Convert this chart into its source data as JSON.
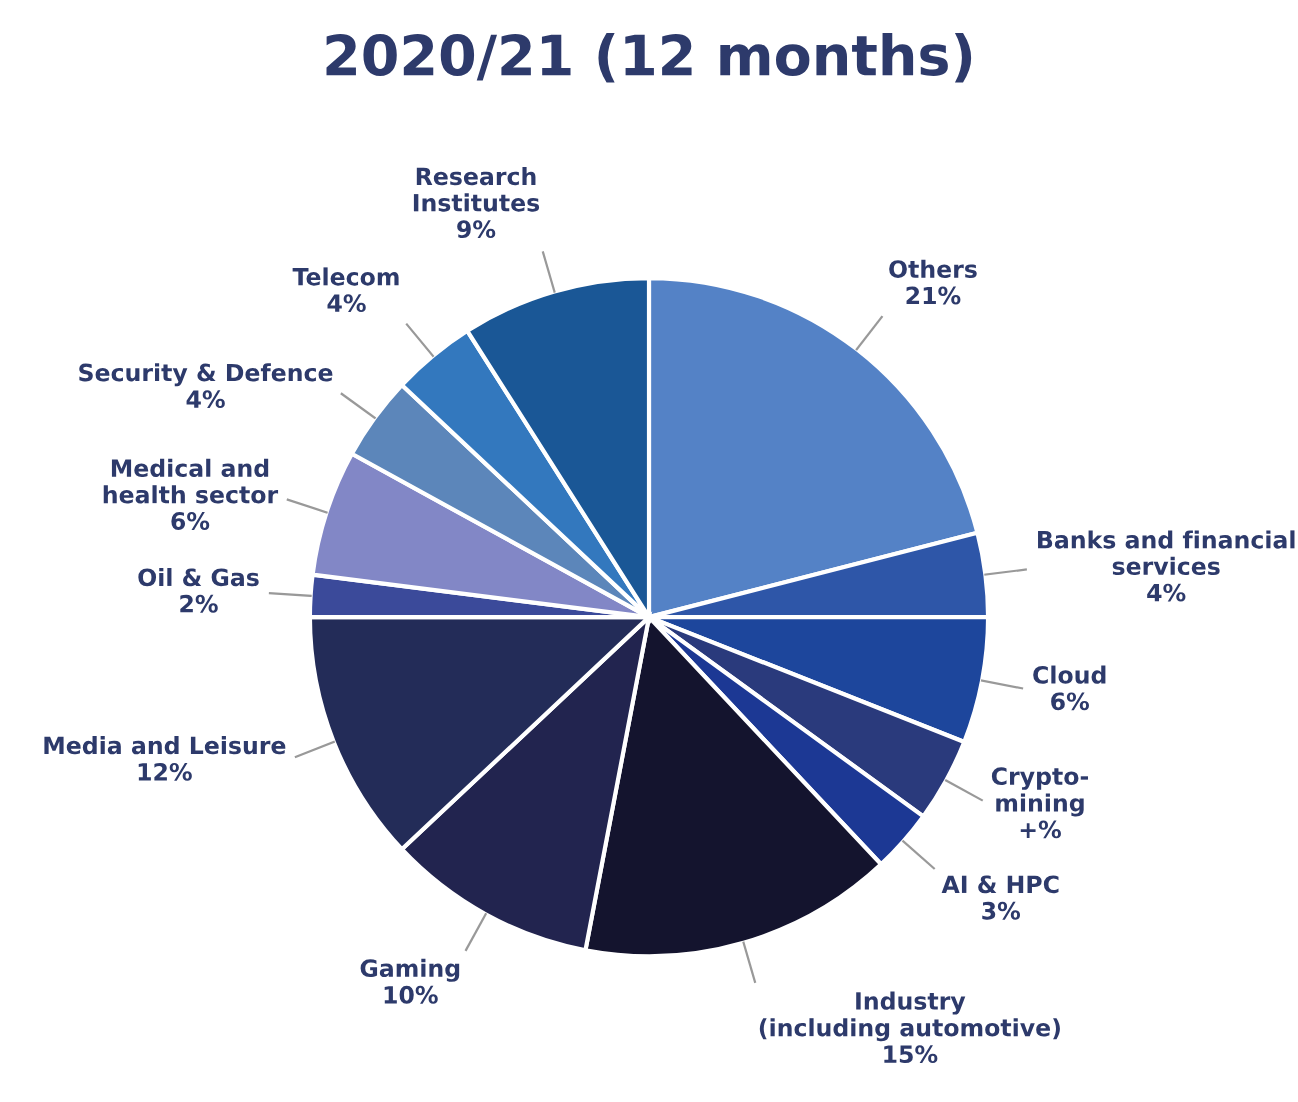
{
  "chart_data": {
    "type": "pie",
    "title": "2020/21 (12 months)",
    "categories": [
      "Others",
      "Banks and financial\nservices",
      "Cloud",
      "Crypto-\nmining",
      "AI & HPC",
      "Industry\n(including automotive)",
      "Gaming",
      "Media and Leisure",
      "Oil & Gas",
      "Medical and\nhealth sector",
      "Security & Defence",
      "Telecom",
      "Research\nInstitutes"
    ],
    "values": [
      21,
      4,
      6,
      4,
      3,
      15,
      10,
      12,
      2,
      6,
      4,
      4,
      9
    ],
    "value_labels": [
      "21%",
      "4%",
      "6%",
      "+%",
      "3%",
      "15%",
      "10%",
      "12%",
      "2%",
      "6%",
      "4%",
      "4%",
      "9%"
    ],
    "colors": [
      "#5482c6",
      "#2e56a8",
      "#1d469c",
      "#2a3a7c",
      "#1c3894",
      "#14142e",
      "#22244f",
      "#232c58",
      "#3b4a9a",
      "#8287c6",
      "#5c86ba",
      "#3378be",
      "#1a5796"
    ]
  }
}
